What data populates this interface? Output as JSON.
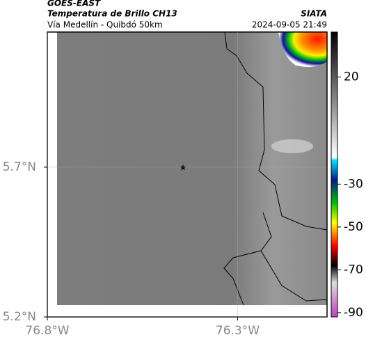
{
  "header": {
    "source": "GOES-EAST",
    "title": "Temperatura de Brillo CH13",
    "subtitle": "Vía Medellín - Quibdó 50km",
    "org": "SIATA",
    "datetime": "2024-09-05 21:49"
  },
  "map": {
    "xlim": [
      -76.8,
      -76.065
    ],
    "ylim": [
      5.2,
      6.151
    ],
    "xticks": [
      {
        "value": -76.8,
        "label": "76.8°W"
      },
      {
        "value": -76.3,
        "label": "76.3°W"
      }
    ],
    "yticks": [
      {
        "value": 5.2,
        "label": "5.2°N"
      },
      {
        "value": 5.7,
        "label": "5.7°N"
      }
    ],
    "grid": true
  },
  "colorbar": {
    "lim": [
      -92,
      41
    ],
    "ticks": [
      20,
      -30,
      -50,
      -70,
      -90
    ]
  }
}
